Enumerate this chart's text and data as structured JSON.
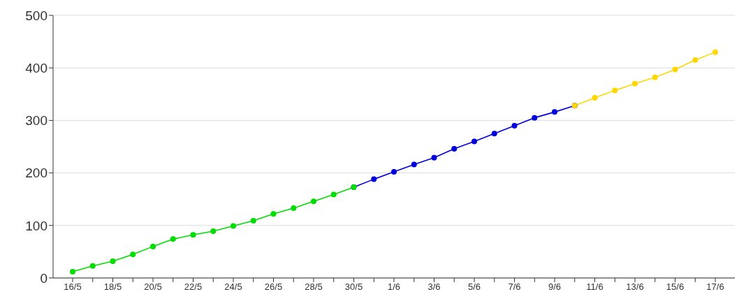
{
  "chart_data": {
    "type": "line",
    "categories": [
      "16/5",
      null,
      "18/5",
      null,
      "20/5",
      null,
      "22/5",
      null,
      "24/5",
      null,
      "26/5",
      null,
      "28/5",
      null,
      "30/5",
      null,
      "1/6",
      null,
      "3/6",
      null,
      "5/6",
      null,
      "7/6",
      null,
      "9/6",
      null,
      "11/6",
      null,
      "13/6",
      null,
      "15/6",
      null,
      "17/6"
    ],
    "series": [
      {
        "color": "#0000dd",
        "values": [
          null,
          null,
          null,
          null,
          null,
          null,
          null,
          null,
          null,
          null,
          null,
          null,
          null,
          null,
          173,
          188,
          202,
          216,
          229,
          246,
          260,
          275,
          290,
          305,
          316,
          328,
          null,
          null,
          null,
          null,
          null,
          null,
          null
        ]
      },
      {
        "color": "#00dd00",
        "values": [
          12,
          23,
          32,
          45,
          60,
          74,
          82,
          89,
          99,
          109,
          122,
          133,
          146,
          159,
          173,
          null,
          null,
          null,
          null,
          null,
          null,
          null,
          null,
          null,
          null,
          null,
          null,
          null,
          null,
          null,
          null,
          null,
          null
        ]
      },
      {
        "color": "#ffd700",
        "values": [
          null,
          null,
          null,
          null,
          null,
          null,
          null,
          null,
          null,
          null,
          null,
          null,
          null,
          null,
          null,
          null,
          null,
          null,
          null,
          null,
          null,
          null,
          null,
          null,
          null,
          328,
          343,
          357,
          370,
          382,
          397,
          415,
          430
        ]
      }
    ],
    "ylim": [
      0,
      500
    ],
    "yticks": [
      0,
      100,
      200,
      300,
      400,
      500
    ],
    "grid": "y",
    "marker": "circle",
    "line_style": "solid"
  }
}
